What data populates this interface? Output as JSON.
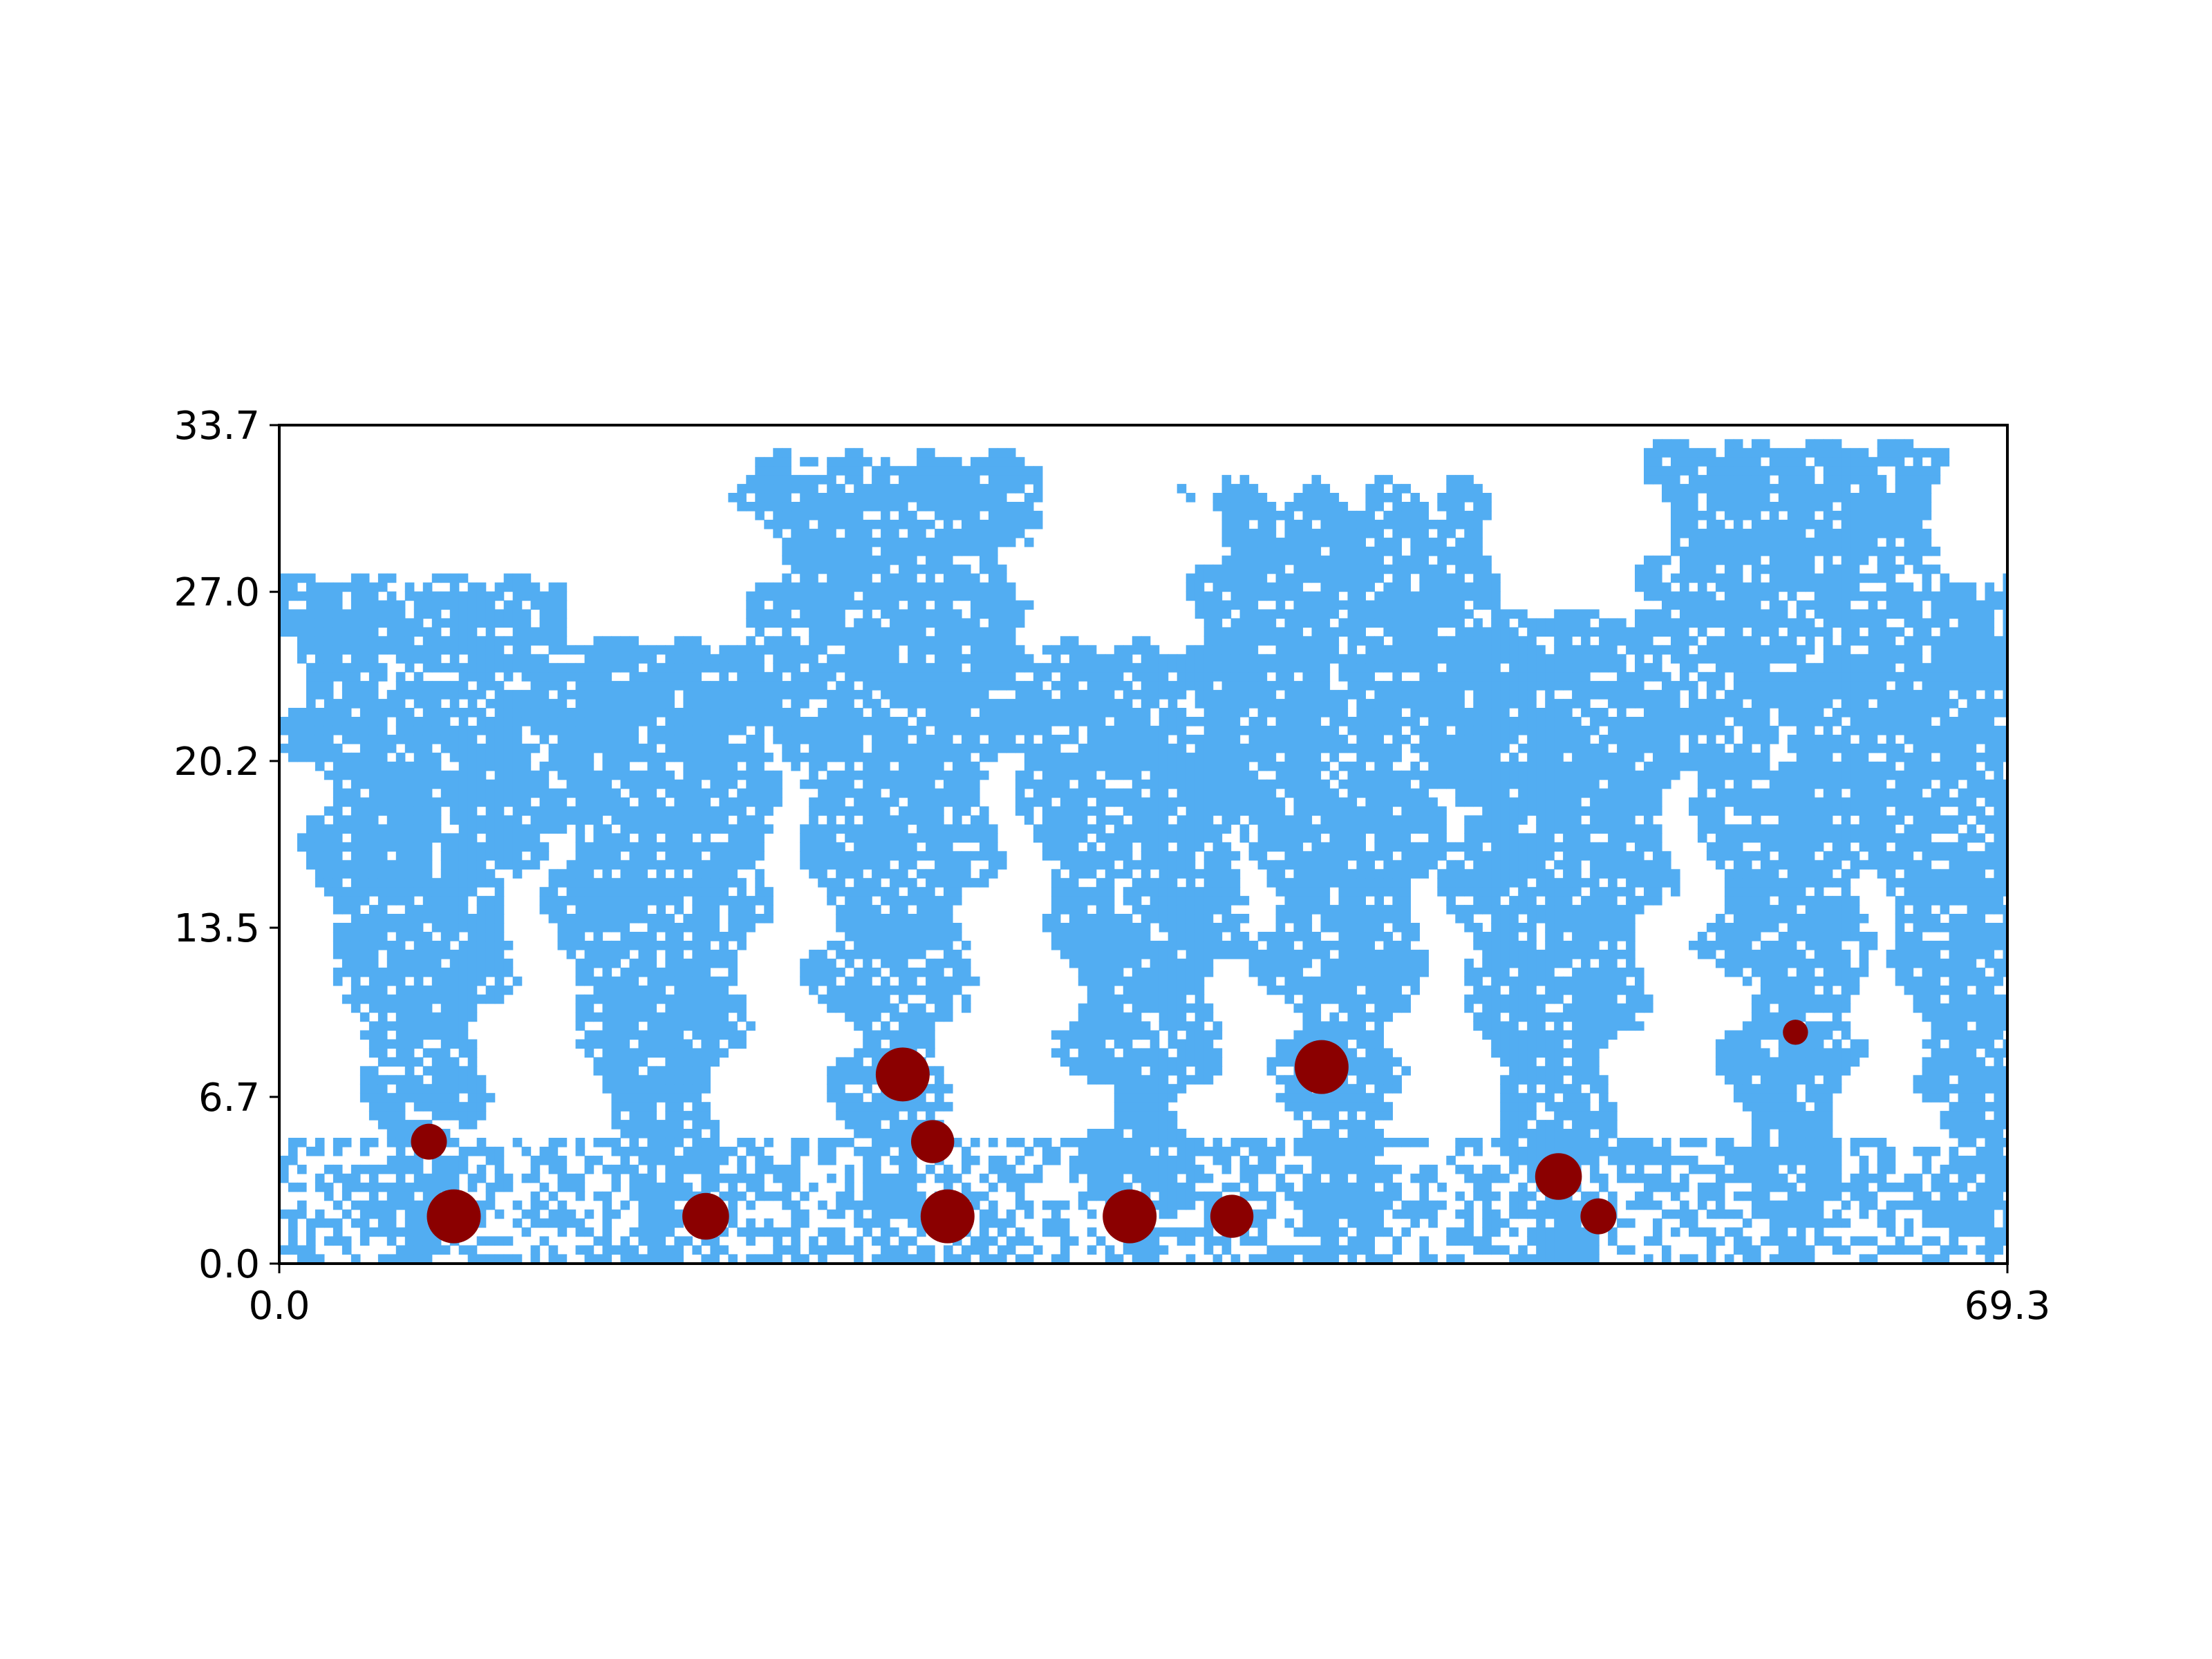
{
  "chart_data": {
    "type": "scatter",
    "title": "",
    "xlabel": "",
    "ylabel": "",
    "xlim": [
      0.0,
      69.3
    ],
    "ylim": [
      0.0,
      33.7
    ],
    "x_ticks": [
      "0.0",
      "69.3"
    ],
    "y_ticks": [
      "0.0",
      "6.7",
      "13.5",
      "20.2",
      "27.0",
      "33.7"
    ],
    "grid": false,
    "colors": {
      "background_field": "#52adf2",
      "markers": "#8b0000",
      "axes": "#000000"
    },
    "background_field": {
      "description": "pixelated blue growth field with several branching lobes",
      "lobes": [
        {
          "x": 5.5,
          "y_top": 27.5
        },
        {
          "x": 15.0,
          "y_top": 25.0
        },
        {
          "x": 24.5,
          "y_top": 32.5
        },
        {
          "x": 34.5,
          "y_top": 25.0
        },
        {
          "x": 42.5,
          "y_top": 30.5
        },
        {
          "x": 51.0,
          "y_top": 26.0
        },
        {
          "x": 60.5,
          "y_top": 32.5
        },
        {
          "x": 68.0,
          "y_top": 27.0
        }
      ]
    },
    "series": [
      {
        "marker": "circle",
        "points": [
          {
            "x": 6.0,
            "y": 4.9,
            "size": 1.0
          },
          {
            "x": 7.0,
            "y": 1.9,
            "size": 1.5
          },
          {
            "x": 17.1,
            "y": 1.9,
            "size": 1.3
          },
          {
            "x": 25.0,
            "y": 7.6,
            "size": 1.5
          },
          {
            "x": 26.2,
            "y": 4.9,
            "size": 1.2
          },
          {
            "x": 26.8,
            "y": 1.9,
            "size": 1.5
          },
          {
            "x": 34.1,
            "y": 1.9,
            "size": 1.5
          },
          {
            "x": 38.2,
            "y": 1.9,
            "size": 1.2
          },
          {
            "x": 41.8,
            "y": 7.9,
            "size": 1.5
          },
          {
            "x": 51.3,
            "y": 3.5,
            "size": 1.3
          },
          {
            "x": 52.9,
            "y": 1.9,
            "size": 1.0
          },
          {
            "x": 60.8,
            "y": 9.3,
            "size": 0.7
          }
        ]
      }
    ]
  }
}
